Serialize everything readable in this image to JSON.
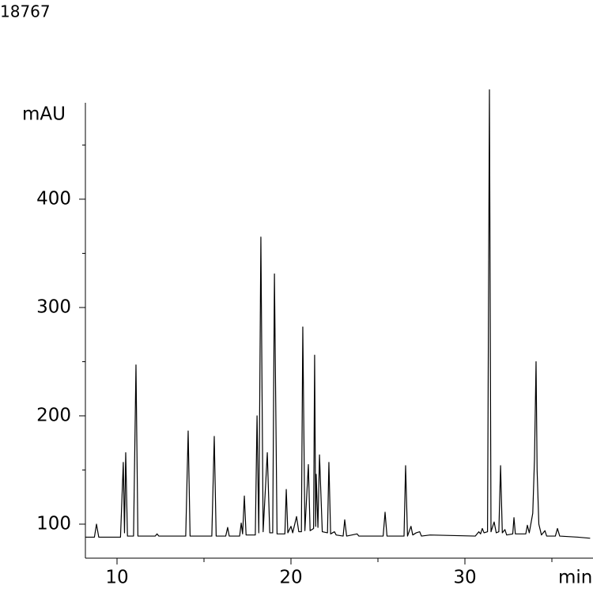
{
  "chart_data": {
    "type": "line",
    "title": "18767",
    "ylabel": "mAU",
    "xlabel": "min",
    "color": "#000000",
    "xlim": [
      8.2,
      37.2
    ],
    "ylim": [
      68.6,
      489
    ],
    "xticks": [
      10,
      20,
      30
    ],
    "yticks": [
      100,
      200,
      300,
      400
    ],
    "xminorticks": [
      15,
      25,
      35
    ],
    "yminorticks": [
      150,
      250,
      350,
      450
    ],
    "x": [
      8.2,
      8.7,
      8.82,
      8.95,
      10.2,
      10.36,
      10.43,
      10.5,
      10.6,
      10.95,
      11.09,
      11.2,
      12.2,
      12.3,
      12.4,
      13.95,
      14.09,
      14.2,
      15.45,
      15.59,
      15.7,
      16.25,
      16.36,
      16.45,
      17.05,
      17.14,
      17.22,
      17.32,
      17.42,
      17.95,
      18.05,
      18.15,
      18.27,
      18.4,
      18.64,
      18.78,
      18.95,
      19.05,
      19.2,
      19.65,
      19.73,
      19.82,
      20.0,
      20.1,
      20.32,
      20.45,
      20.6,
      20.68,
      20.8,
      21.0,
      21.1,
      21.3,
      21.36,
      21.42,
      21.45,
      21.55,
      21.64,
      21.8,
      22.1,
      22.18,
      22.28,
      22.5,
      22.6,
      23.0,
      23.09,
      23.2,
      23.8,
      23.9,
      25.3,
      25.41,
      25.52,
      26.5,
      26.59,
      26.7,
      26.9,
      27.0,
      27.2,
      27.4,
      27.5,
      28.0,
      30.6,
      30.8,
      30.9,
      31.0,
      31.1,
      31.3,
      31.41,
      31.5,
      31.68,
      31.8,
      31.95,
      32.05,
      32.15,
      32.3,
      32.4,
      32.75,
      32.82,
      32.9,
      33.5,
      33.59,
      33.7,
      33.9,
      34.0,
      34.09,
      34.15,
      34.25,
      34.4,
      34.6,
      34.7,
      35.2,
      35.32,
      35.45,
      36.5,
      37.2
    ],
    "values": [
      88,
      88,
      100,
      88,
      88,
      157,
      92,
      166,
      89,
      89,
      247,
      89,
      89,
      91,
      89,
      89,
      186,
      89,
      89,
      181,
      89,
      89,
      97,
      89,
      89,
      101,
      91,
      126,
      90,
      90,
      200,
      92,
      365,
      93,
      166,
      92,
      92,
      331,
      91,
      91,
      132,
      92,
      98,
      92,
      107,
      93,
      93,
      282,
      94,
      155,
      94,
      96,
      256,
      98,
      146,
      97,
      164,
      93,
      92,
      157,
      91,
      93,
      90,
      89,
      104,
      89,
      91,
      89,
      89,
      111,
      89,
      89,
      154,
      89,
      98,
      90,
      92,
      93,
      89,
      90,
      89,
      93,
      91,
      96,
      92,
      93,
      501,
      93,
      102,
      92,
      93,
      154,
      92,
      95,
      90,
      91,
      106,
      91,
      91,
      99,
      92,
      110,
      160,
      250,
      150,
      100,
      90,
      94,
      89,
      89,
      96,
      89,
      88,
      87
    ]
  }
}
